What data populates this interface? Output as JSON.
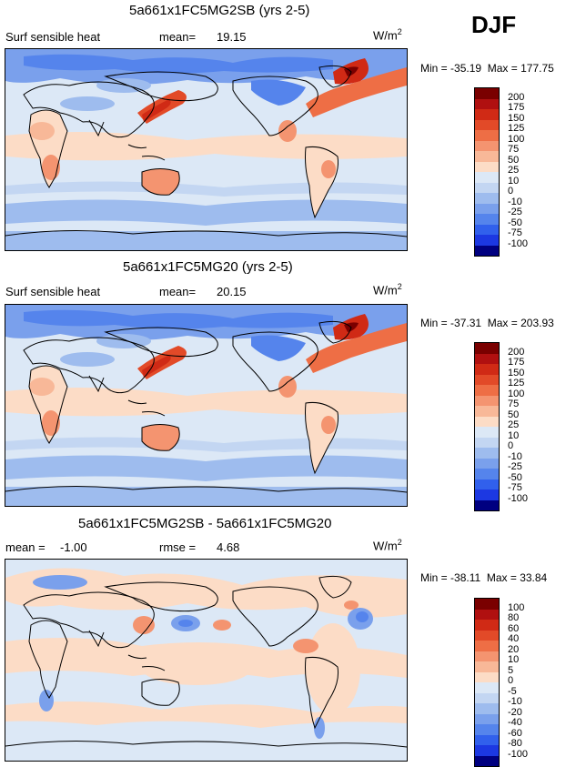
{
  "season": "DJF",
  "colors": {
    "land_outline": "#000000",
    "pos_scale": [
      "#7a0000",
      "#b01010",
      "#d02a15",
      "#e24a28",
      "#ee6e45",
      "#f49470",
      "#f8b898",
      "#fcdcc6"
    ],
    "neg_scale": [
      "#dce8f6",
      "#c3d6f2",
      "#9ebcee",
      "#7aa0ec",
      "#5584ec",
      "#3160ec",
      "#1c38e2",
      "#000080"
    ]
  },
  "panels": [
    {
      "title": "5a661x1FC5MG2SB (yrs 2-5)",
      "left_label": "Surf sensible heat",
      "stat_label": "mean=",
      "stat_value": "19.15",
      "units_base": "W/m",
      "units_exp": "2",
      "min_label": "Min =",
      "min_value": "-35.19",
      "max_label": "Max =",
      "max_value": "177.75",
      "levels": [
        "200",
        "175",
        "150",
        "125",
        "100",
        "75",
        "50",
        "25",
        "10",
        "0",
        "-10",
        "-25",
        "-50",
        "-75",
        "-100"
      ]
    },
    {
      "title": "5a661x1FC5MG20 (yrs 2-5)",
      "left_label": "Surf sensible heat",
      "stat_label": "mean=",
      "stat_value": "20.15",
      "units_base": "W/m",
      "units_exp": "2",
      "min_label": "Min =",
      "min_value": "-37.31",
      "max_label": "Max =",
      "max_value": "203.93",
      "levels": [
        "200",
        "175",
        "150",
        "125",
        "100",
        "75",
        "50",
        "25",
        "10",
        "0",
        "-10",
        "-25",
        "-50",
        "-75",
        "-100"
      ]
    },
    {
      "title": "5a661x1FC5MG2SB - 5a661x1FC5MG20",
      "left_label": "mean =",
      "left_value": "-1.00",
      "stat_label": "rmse =",
      "stat_value": "4.68",
      "units_base": "W/m",
      "units_exp": "2",
      "min_label": "Min =",
      "min_value": "-38.11",
      "max_label": "Max =",
      "max_value": "33.84",
      "levels": [
        "100",
        "80",
        "60",
        "40",
        "20",
        "10",
        "5",
        "0",
        "-5",
        "-10",
        "-20",
        "-40",
        "-60",
        "-80",
        "-100"
      ]
    }
  ]
}
